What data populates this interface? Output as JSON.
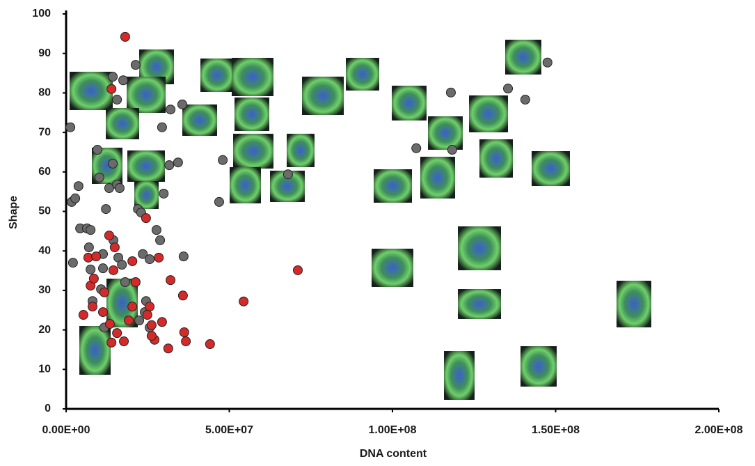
{
  "chart_data": {
    "type": "scatter",
    "x_label": "DNA content",
    "y_label": "Shape",
    "xlim": [
      0,
      200000000
    ],
    "ylim": [
      0,
      100
    ],
    "xticks": [
      {
        "value": 0,
        "label": "0.00E+00"
      },
      {
        "value": 50000000,
        "label": "5.00E+07"
      },
      {
        "value": 100000000,
        "label": "1.00E+08"
      },
      {
        "value": 150000000,
        "label": "1.50E+08"
      },
      {
        "value": 200000000,
        "label": "2.00E+08"
      }
    ],
    "yticks": [
      0,
      10,
      20,
      30,
      40,
      50,
      60,
      70,
      80,
      90,
      100
    ],
    "grid": false,
    "series": [
      {
        "color": "#6b6b6b",
        "x": [
          1300000,
          1700000,
          2800000,
          3800000,
          2100000,
          4300000,
          6400000,
          7500000,
          7000000,
          7500000,
          8100000,
          9600000,
          10200000,
          11300000,
          11300000,
          10700000,
          12200000,
          13200000,
          14300000,
          15600000,
          14300000,
          15600000,
          16400000,
          17500000,
          14500000,
          16000000,
          17100000,
          21300000,
          22000000,
          23000000,
          23500000,
          24500000,
          22400000,
          25600000,
          27700000,
          28800000,
          25600000,
          29400000,
          29900000,
          31600000,
          32000000,
          34300000,
          35600000,
          36000000,
          46900000,
          48000000,
          107300000,
          117900000,
          118300000,
          135400000,
          140700000,
          147500000,
          68000000,
          18100000,
          24100000,
          11700000
        ],
        "values": [
          71.3,
          52.4,
          53.3,
          56.4,
          37.0,
          45.7,
          45.7,
          45.3,
          40.9,
          35.3,
          27.3,
          65.6,
          58.6,
          39.2,
          35.6,
          30.3,
          50.6,
          55.9,
          84.1,
          78.3,
          62.1,
          56.8,
          55.9,
          83.2,
          42.7,
          38.3,
          36.5,
          87.1,
          50.6,
          49.7,
          39.2,
          27.3,
          22.4,
          20.6,
          45.3,
          42.7,
          37.9,
          71.3,
          54.5,
          61.7,
          75.8,
          62.4,
          77.1,
          38.6,
          52.4,
          63.0,
          66.0,
          80.1,
          65.6,
          81.1,
          78.3,
          87.7,
          59.4,
          32.1,
          24.5,
          20.6
        ]
      },
      {
        "color": "#d42a2a",
        "x": [
          18100000,
          13900000,
          13200000,
          14900000,
          14500000,
          5300000,
          6800000,
          9200000,
          7500000,
          8100000,
          8500000,
          11700000,
          11300000,
          13400000,
          13900000,
          17700000,
          15600000,
          20300000,
          21300000,
          24500000,
          25600000,
          24900000,
          26200000,
          27100000,
          26200000,
          28400000,
          29400000,
          31300000,
          32000000,
          35800000,
          36200000,
          36700000,
          44100000,
          54400000,
          71000000,
          20300000,
          19200000
        ],
        "values": [
          94.2,
          81.0,
          43.9,
          40.9,
          35.1,
          23.8,
          38.3,
          38.6,
          31.2,
          25.9,
          33.0,
          29.5,
          24.5,
          21.5,
          16.8,
          17.1,
          19.2,
          37.4,
          32.1,
          48.3,
          25.9,
          23.8,
          21.2,
          17.5,
          18.5,
          38.3,
          22.0,
          15.3,
          32.6,
          28.7,
          19.4,
          17.1,
          16.4,
          27.2,
          35.1,
          25.9,
          22.4
        ]
      }
    ]
  }
}
